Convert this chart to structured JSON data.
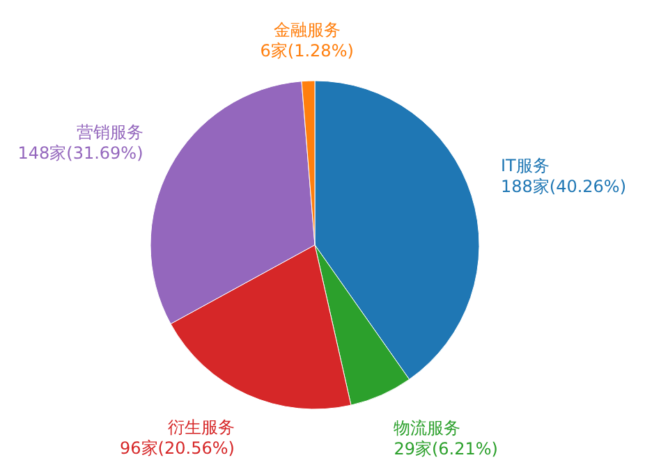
{
  "chart_data": {
    "type": "pie",
    "categories": [
      "IT服务",
      "物流服务",
      "衍生服务",
      "营销服务",
      "金融服务"
    ],
    "values": [
      188,
      29,
      96,
      148,
      6
    ],
    "value_labels": [
      "188家(40.26%)",
      "29家(6.21%)",
      "96家(20.56%)",
      "148家(31.69%)",
      "6家(1.28%)"
    ],
    "colors": [
      "#1f77b4",
      "#2ca02c",
      "#d62728",
      "#9467bd",
      "#ff7f0e"
    ]
  }
}
